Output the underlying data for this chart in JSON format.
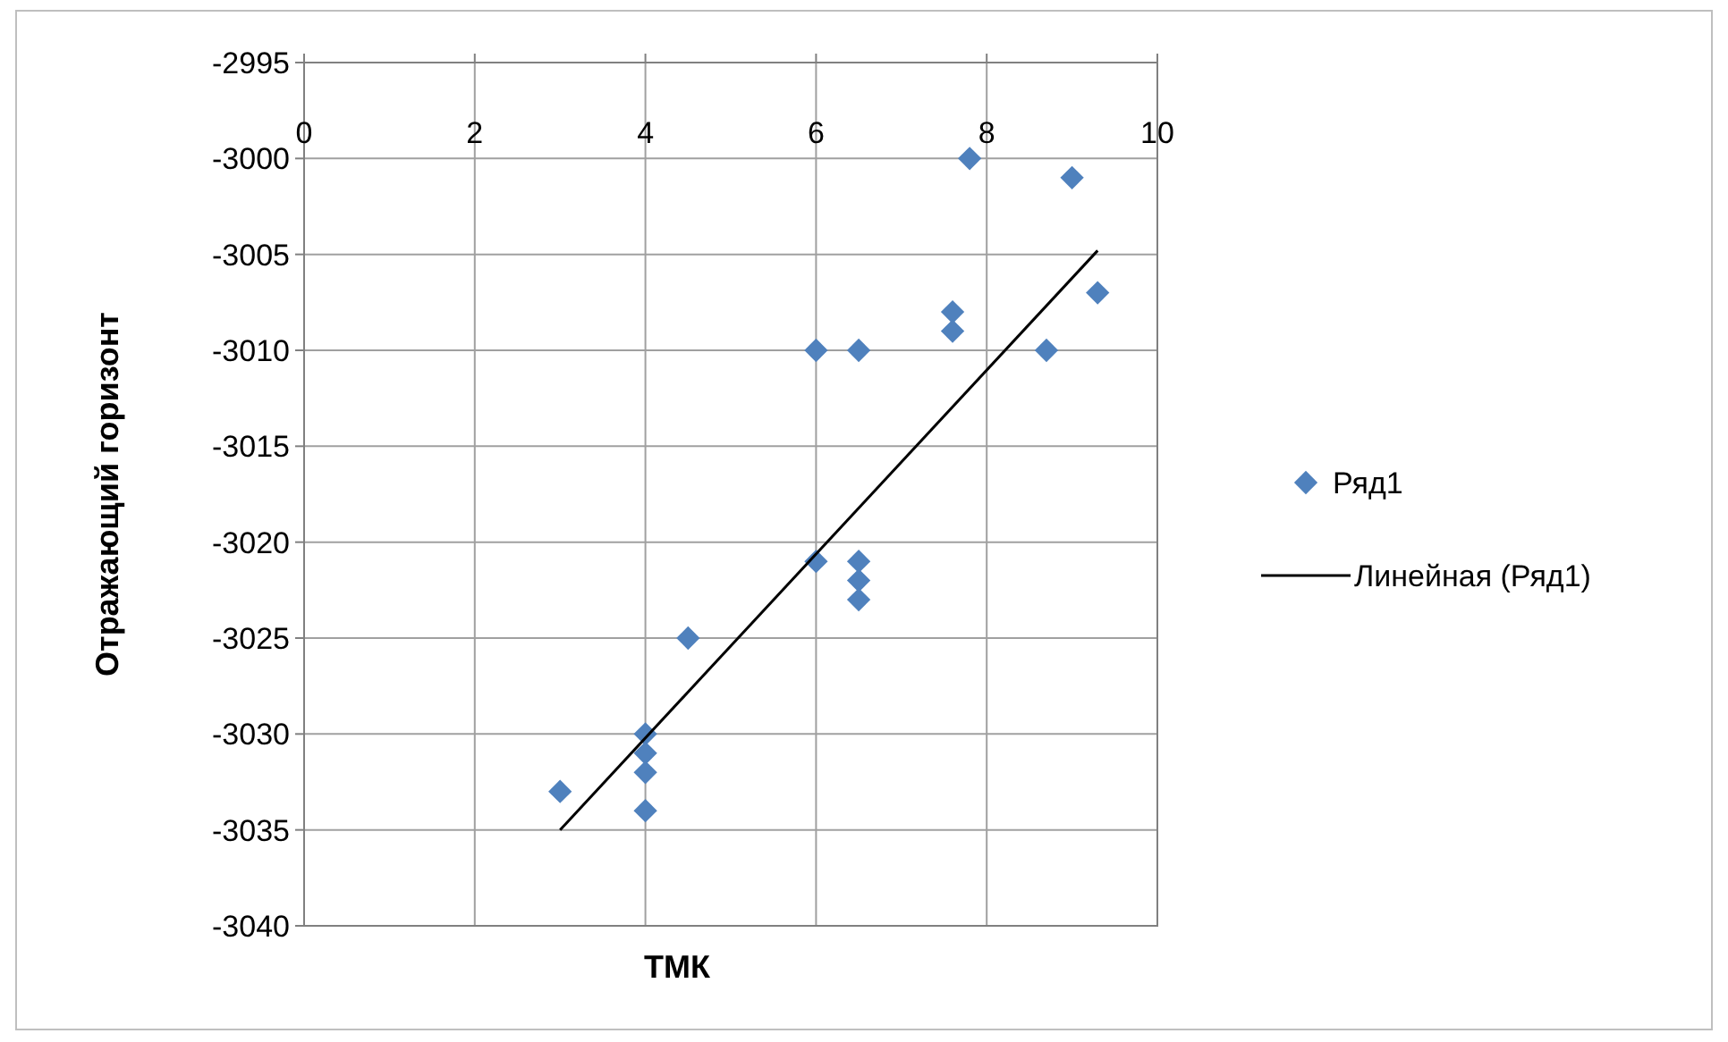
{
  "chart_data": {
    "type": "scatter",
    "xlabel": "ТМК",
    "ylabel": "Отражающий горизонт",
    "xlim": [
      0,
      10
    ],
    "xticks": [
      0,
      2,
      4,
      6,
      8,
      10
    ],
    "ylim": [
      -3040,
      -2995
    ],
    "yticks": [
      -3040,
      -3035,
      -3030,
      -3025,
      -3020,
      -3015,
      -3010,
      -3005,
      -3000,
      -2995
    ],
    "grid": true,
    "legend": "right",
    "series": [
      {
        "name": "Ряд1",
        "color": "#4f81bd",
        "marker": "diamond",
        "x": [
          3,
          4,
          4,
          4,
          4,
          4.5,
          6,
          6,
          6.5,
          6.5,
          6.5,
          6.5,
          7.6,
          7.6,
          7.8,
          8.7,
          9,
          9.3
        ],
        "values": [
          -3033,
          -3030,
          -3031,
          -3032,
          -3034,
          -3025,
          -3010,
          -3021,
          -3010,
          -3021,
          -3022,
          -3023,
          -3008,
          -3009,
          -3000,
          -3010,
          -3001,
          -3007
        ]
      },
      {
        "name": "Линейная (Ряд1)",
        "type": "line",
        "color": "#000000",
        "marker": "none",
        "line_style": "solid",
        "x": [
          3,
          9.3
        ],
        "values": [
          -3035,
          -3004.8
        ]
      }
    ]
  }
}
